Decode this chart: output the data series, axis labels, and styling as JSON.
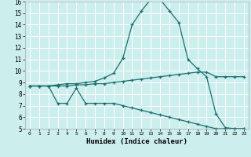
{
  "xlabel": "Humidex (Indice chaleur)",
  "xlim": [
    -0.5,
    23.5
  ],
  "ylim": [
    5,
    16
  ],
  "yticks": [
    5,
    6,
    7,
    8,
    9,
    10,
    11,
    12,
    13,
    14,
    15,
    16
  ],
  "xticks": [
    0,
    1,
    2,
    3,
    4,
    5,
    6,
    7,
    8,
    9,
    10,
    11,
    12,
    13,
    14,
    15,
    16,
    17,
    18,
    19,
    20,
    21,
    22,
    23
  ],
  "bg_color": "#cceeed",
  "grid_color": "#ffffff",
  "line_color": "#1a7070",
  "lines": [
    {
      "x": [
        0,
        1,
        2,
        3,
        4,
        5,
        6,
        7,
        8,
        9,
        10,
        11,
        12,
        13,
        14,
        15,
        16,
        17,
        18,
        19,
        20,
        21,
        22,
        23
      ],
      "y": [
        8.7,
        8.7,
        8.7,
        8.8,
        8.9,
        8.9,
        9.0,
        9.1,
        9.4,
        9.8,
        11.1,
        14.0,
        15.2,
        16.2,
        16.2,
        15.2,
        14.2,
        11.0,
        10.2,
        9.5,
        6.3,
        5.1,
        5.0,
        5.0
      ]
    },
    {
      "x": [
        0,
        1,
        2,
        3,
        4,
        5,
        6,
        7,
        8,
        9,
        10,
        11,
        12,
        13,
        14,
        15,
        16,
        17,
        18,
        19,
        20,
        21,
        22,
        23
      ],
      "y": [
        8.7,
        8.7,
        8.7,
        8.7,
        8.7,
        8.8,
        8.8,
        8.9,
        8.9,
        9.0,
        9.1,
        9.2,
        9.3,
        9.4,
        9.5,
        9.6,
        9.7,
        9.8,
        9.9,
        9.9,
        9.5,
        9.5,
        9.5,
        9.5
      ]
    },
    {
      "x": [
        0,
        1,
        2,
        3,
        4,
        5,
        6,
        7,
        8,
        9,
        10,
        11,
        12,
        13,
        14,
        15,
        16,
        17,
        18,
        19,
        20,
        21,
        22,
        23
      ],
      "y": [
        8.7,
        8.7,
        8.7,
        7.2,
        7.2,
        8.5,
        7.2,
        7.2,
        7.2,
        7.2,
        7.0,
        6.8,
        6.6,
        6.4,
        6.2,
        6.0,
        5.8,
        5.6,
        5.4,
        5.2,
        5.0,
        5.0,
        5.0,
        5.0
      ]
    }
  ]
}
